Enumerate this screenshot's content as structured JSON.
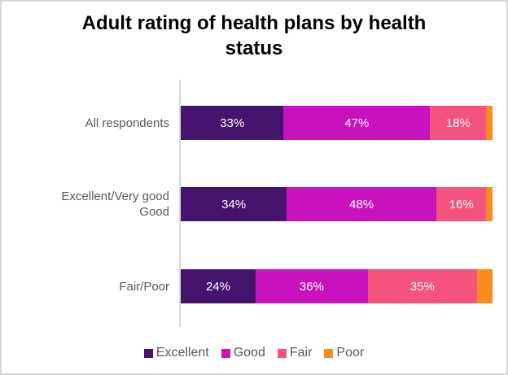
{
  "chart_data": {
    "type": "bar",
    "subtype": "horizontal-stacked",
    "title": "Adult rating of health plans by health status",
    "categories": [
      "All respondents",
      "Excellent/Very good\nGood",
      "Fair/Poor"
    ],
    "series": [
      {
        "name": "Excellent",
        "color": "#45156d",
        "values": [
          33,
          34,
          24
        ]
      },
      {
        "name": "Good",
        "color": "#c712bd",
        "values": [
          47,
          48,
          36
        ]
      },
      {
        "name": "Fair",
        "color": "#f4537d",
        "values": [
          18,
          16,
          35
        ]
      },
      {
        "name": "Poor",
        "color": "#fb8b1e",
        "values": [
          2,
          2,
          5
        ]
      }
    ],
    "data_labels": {
      "format": "percent",
      "color": "#ffffff",
      "shown": [
        [
          "33%",
          "47%",
          "18%",
          ""
        ],
        [
          "34%",
          "48%",
          "16%",
          ""
        ],
        [
          "24%",
          "36%",
          "35%",
          ""
        ]
      ]
    },
    "xlim": [
      0,
      100
    ],
    "grid": false,
    "legend_position": "bottom",
    "axis_line_color": "#d9d9d9",
    "category_label_color": "#595959",
    "title_color": "#000000",
    "frame_border_color": "#d6d6d6"
  }
}
